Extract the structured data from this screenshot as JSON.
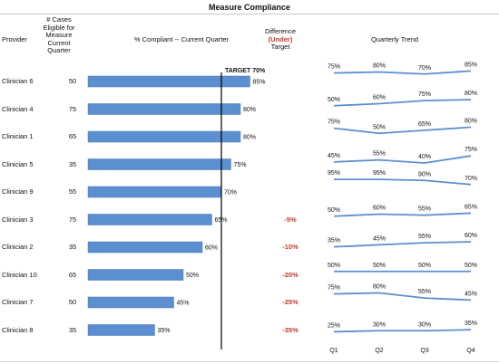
{
  "title": "Measure Compliance",
  "headers": {
    "provider": "Provider",
    "cases": [
      "# Cases",
      "Eligible for",
      "Measure",
      "Current",
      "Quarter"
    ],
    "compliant": "% Compliant -- Current Quarter",
    "difference_top": "Difference",
    "difference_mid": "(Under)",
    "difference_bottom": "Target",
    "trend": "Quarterly Trend"
  },
  "target_label": "TARGET 70%",
  "target_value": 70,
  "quarters": [
    "Q1",
    "Q2",
    "Q3",
    "Q4"
  ],
  "colors": {
    "bar": "#5b8fd0",
    "trend": "#5b8fd0",
    "negative": "#c0392b",
    "target_line": "#000000"
  },
  "chart_data": {
    "type": "bar",
    "categories": [
      "Clinician 6",
      "Clinician 4",
      "Clinician 1",
      "Clinician 5",
      "Clinician 9",
      "Clinician 3",
      "Clinician 2",
      "Clinician 10",
      "Clinician 7",
      "Clinician 8"
    ],
    "cases": [
      50,
      75,
      65,
      35,
      55,
      75,
      35,
      65,
      50,
      35
    ],
    "values": [
      85,
      80,
      80,
      75,
      70,
      65,
      60,
      50,
      45,
      35
    ],
    "value_labels": [
      "85%",
      "80%",
      "80%",
      "75%",
      "70%",
      "65%",
      "60%",
      "50%",
      "45%",
      "35%"
    ],
    "difference_labels": [
      "",
      "",
      "",
      "",
      "",
      "-5%",
      "-10%",
      "-20%",
      "-25%",
      "-35%"
    ],
    "target": 70,
    "xlim": [
      0,
      100
    ],
    "trend": [
      [
        75,
        80,
        70,
        85
      ],
      [
        50,
        60,
        75,
        80
      ],
      [
        75,
        50,
        65,
        80
      ],
      [
        45,
        55,
        40,
        75
      ],
      [
        95,
        95,
        90,
        70
      ],
      [
        50,
        60,
        55,
        65
      ],
      [
        35,
        45,
        55,
        60
      ],
      [
        50,
        50,
        50,
        50
      ],
      [
        75,
        80,
        55,
        45
      ],
      [
        25,
        30,
        30,
        35
      ]
    ]
  }
}
